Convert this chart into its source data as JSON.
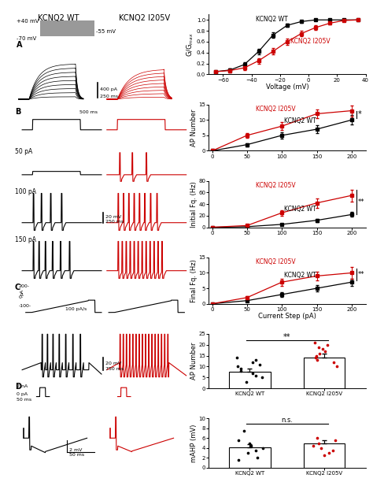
{
  "title_wt": "KCNQ2 WT",
  "title_i205v": "KCNQ2 I205V",
  "black": "#000000",
  "red": "#cc0000",
  "gray": "#999999",
  "gv_voltage": [
    -65,
    -55,
    -45,
    -35,
    -25,
    -15,
    -5,
    5,
    15,
    25,
    35
  ],
  "gv_wt": [
    0.05,
    0.08,
    0.18,
    0.42,
    0.72,
    0.9,
    0.97,
    1.0,
    1.0,
    1.0,
    1.0
  ],
  "gv_wt_err": [
    0.02,
    0.03,
    0.04,
    0.05,
    0.05,
    0.03,
    0.02,
    0.01,
    0.01,
    0.01,
    0.01
  ],
  "gv_i205v": [
    0.05,
    0.07,
    0.12,
    0.25,
    0.42,
    0.6,
    0.75,
    0.86,
    0.94,
    0.99,
    1.0
  ],
  "gv_i205v_err": [
    0.02,
    0.03,
    0.04,
    0.05,
    0.06,
    0.06,
    0.05,
    0.04,
    0.03,
    0.02,
    0.01
  ],
  "current_steps": [
    0,
    50,
    100,
    150,
    200
  ],
  "ap_wt": [
    0,
    2,
    5,
    7,
    10
  ],
  "ap_wt_err": [
    0,
    0.5,
    1.0,
    1.2,
    1.5
  ],
  "ap_i205v": [
    0,
    5,
    8,
    12,
    13
  ],
  "ap_i205v_err": [
    0,
    0.8,
    1.2,
    1.5,
    1.8
  ],
  "initfq_wt": [
    0,
    1,
    5,
    12,
    22
  ],
  "initfq_wt_err": [
    0,
    0.5,
    1.5,
    2.5,
    4.0
  ],
  "initfq_i205v": [
    0,
    3,
    25,
    42,
    55
  ],
  "initfq_i205v_err": [
    0,
    1.0,
    5.0,
    8.0,
    10.0
  ],
  "finalfq_wt": [
    0,
    1,
    3,
    5,
    7
  ],
  "finalfq_wt_err": [
    0,
    0.3,
    0.8,
    1.0,
    1.2
  ],
  "finalfq_i205v": [
    0,
    2,
    7,
    9,
    10
  ],
  "finalfq_i205v_err": [
    0,
    0.5,
    1.2,
    1.5,
    1.8
  ],
  "bar_ap_wt": 7.5,
  "bar_ap_i205v": 14.0,
  "bar_ap_wt_err": 1.5,
  "bar_ap_i205v_err": 1.8,
  "bar_ap_wt_dots": [
    3,
    5,
    6,
    7,
    8,
    9,
    10,
    11,
    12,
    13,
    14
  ],
  "bar_ap_i205v_dots": [
    10,
    12,
    13,
    14,
    15,
    16,
    17,
    18,
    19,
    20,
    21
  ],
  "bar_mahp_wt": 4.2,
  "bar_mahp_i205v": 5.0,
  "bar_mahp_wt_err": 0.5,
  "bar_mahp_i205v_err": 0.6,
  "bar_mahp_wt_dots": [
    1.5,
    2.0,
    3.0,
    3.5,
    4.0,
    4.5,
    5.0,
    5.5,
    7.5
  ],
  "bar_mahp_i205v_dots": [
    2.5,
    3.0,
    3.5,
    4.0,
    4.5,
    5.0,
    5.5,
    6.0
  ]
}
